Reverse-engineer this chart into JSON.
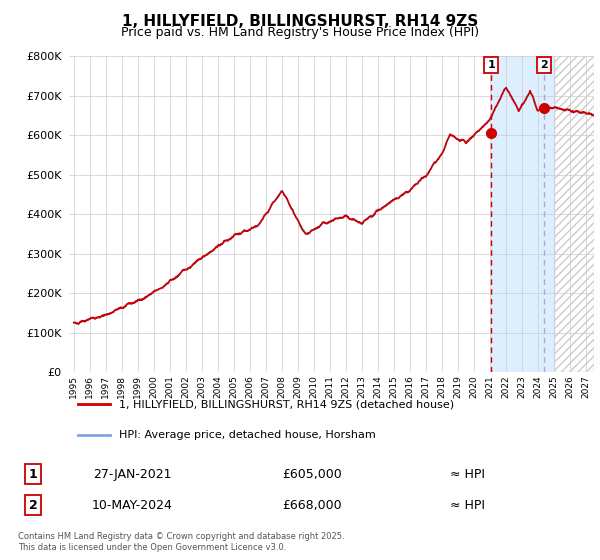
{
  "title": "1, HILLYFIELD, BILLINGSHURST, RH14 9ZS",
  "subtitle": "Price paid vs. HM Land Registry's House Price Index (HPI)",
  "legend_line1": "1, HILLYFIELD, BILLINGSHURST, RH14 9ZS (detached house)",
  "legend_line2": "HPI: Average price, detached house, Horsham",
  "annotation1_date": "27-JAN-2021",
  "annotation1_price": "£605,000",
  "annotation1_hpi": "≈ HPI",
  "annotation2_date": "10-MAY-2024",
  "annotation2_price": "£668,000",
  "annotation2_hpi": "≈ HPI",
  "footer": "Contains HM Land Registry data © Crown copyright and database right 2025.\nThis data is licensed under the Open Government Licence v3.0.",
  "line_color": "#cc0000",
  "hpi_color": "#7aaadd",
  "vline1_color": "#cc0000",
  "vline2_color": "#aaaacc",
  "shade_color": "#ddeeff",
  "bg_color": "#ffffff",
  "grid_color": "#cccccc",
  "ylim": [
    0,
    800000
  ],
  "yticks": [
    0,
    100000,
    200000,
    300000,
    400000,
    500000,
    600000,
    700000,
    800000
  ],
  "xlim_start": 1994.7,
  "xlim_end": 2027.5,
  "vline1_x": 2021.07,
  "vline2_x": 2024.37,
  "shade_start": 2021.07,
  "hatch_start": 2025.08,
  "sale1_y": 605000,
  "sale2_y": 668000,
  "seed": 42
}
